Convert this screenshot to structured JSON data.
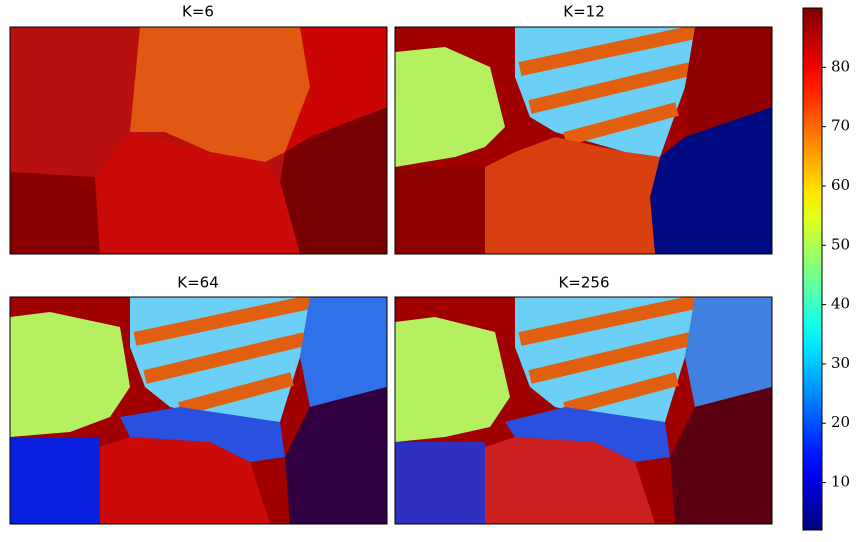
{
  "chart_data": {
    "type": "image-grid",
    "panels": [
      {
        "title": "K=6"
      },
      {
        "title": "K=12"
      },
      {
        "title": "K=64"
      },
      {
        "title": "K=256"
      }
    ],
    "colorbar": {
      "colormap": "jet",
      "lim": [
        2,
        90
      ],
      "ticks": [
        10,
        20,
        30,
        40,
        50,
        60,
        70,
        80
      ]
    }
  }
}
